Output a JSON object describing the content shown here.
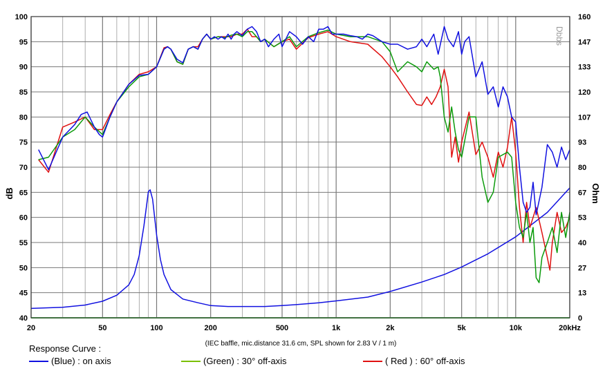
{
  "chart_data": {
    "type": "line",
    "xscale": "log",
    "xlim": [
      20,
      20000
    ],
    "ylim": [
      40,
      100
    ],
    "y2lim": [
      0,
      160
    ],
    "grid": true,
    "ylabel": "dB",
    "y2label": "Ohm",
    "watermark": "Dbbs",
    "note": "(IEC baffle, mic.distance 31.6 cm, SPL shown for 2.83 V / 1 m)",
    "x_ticks": [
      {
        "v": 20,
        "label": "20"
      },
      {
        "v": 50,
        "label": "50"
      },
      {
        "v": 100,
        "label": "100"
      },
      {
        "v": 200,
        "label": "200"
      },
      {
        "v": 500,
        "label": "500"
      },
      {
        "v": 1000,
        "label": "1k"
      },
      {
        "v": 2000,
        "label": "2k"
      },
      {
        "v": 5000,
        "label": "5k"
      },
      {
        "v": 10000,
        "label": "10k"
      },
      {
        "v": 20000,
        "label": "20kHz"
      }
    ],
    "y_ticks": [
      "40",
      "45",
      "50",
      "55",
      "60",
      "65",
      "70",
      "75",
      "80",
      "85",
      "90",
      "95",
      "100"
    ],
    "y2_ticks": [
      "0",
      "13",
      "27",
      "40",
      "53",
      "67",
      "80",
      "93",
      "107",
      "120",
      "133",
      "147",
      "160"
    ],
    "series": [
      {
        "name": "on axis",
        "color": "#1010e0",
        "x": [
          22,
          25,
          30,
          35,
          38,
          41,
          45,
          48,
          50,
          55,
          60,
          70,
          80,
          90,
          100,
          110,
          115,
          120,
          130,
          140,
          150,
          160,
          170,
          180,
          190,
          200,
          210,
          220,
          230,
          240,
          250,
          260,
          270,
          280,
          300,
          320,
          340,
          360,
          380,
          400,
          420,
          450,
          480,
          500,
          550,
          600,
          650,
          700,
          750,
          800,
          850,
          900,
          950,
          1000,
          1100,
          1200,
          1300,
          1400,
          1500,
          1600,
          1800,
          2000,
          2200,
          2500,
          2800,
          3000,
          3200,
          3500,
          3700,
          4000,
          4200,
          4500,
          4800,
          5000,
          5200,
          5500,
          6000,
          6500,
          7000,
          7500,
          8000,
          8500,
          9000,
          9500,
          10000,
          10500,
          11000,
          11500,
          12000,
          12500,
          13000,
          14000,
          15000,
          16000,
          17000,
          18000,
          19000,
          20000
        ],
        "y": [
          73.5,
          69.5,
          76,
          78.5,
          80.5,
          81,
          78,
          76.5,
          76,
          80,
          83,
          86.5,
          88.3,
          88.5,
          90,
          93.5,
          94,
          93.5,
          91.5,
          90.8,
          93.5,
          94,
          93.5,
          95.5,
          96.5,
          95.5,
          96,
          95.5,
          96,
          95.5,
          96.5,
          95.5,
          96.5,
          97,
          96.2,
          97.5,
          98,
          97,
          95,
          95.5,
          94,
          95.5,
          96.5,
          94,
          97,
          96,
          94.5,
          96,
          95,
          97.5,
          97.5,
          98,
          96.5,
          96.5,
          96.5,
          96.2,
          96,
          95.5,
          96.5,
          96.2,
          95,
          94.5,
          94.5,
          93.5,
          94,
          95.5,
          94,
          96.5,
          92.5,
          98,
          95.5,
          94,
          97,
          92.5,
          95,
          96,
          88,
          91,
          84.5,
          86,
          82,
          86,
          84,
          80,
          79,
          70,
          63,
          61,
          62,
          67,
          60.5,
          66,
          74.5,
          73,
          70,
          74,
          71.5,
          73.5
        ]
      },
      {
        "name": "30° off-axis",
        "color": "#0a9a0a",
        "x": [
          22,
          25,
          30,
          35,
          40,
          45,
          50,
          55,
          60,
          70,
          80,
          90,
          100,
          110,
          115,
          120,
          130,
          140,
          150,
          160,
          170,
          180,
          190,
          200,
          220,
          240,
          260,
          280,
          300,
          320,
          340,
          360,
          380,
          400,
          450,
          500,
          550,
          600,
          700,
          800,
          900,
          1000,
          1200,
          1500,
          1800,
          2000,
          2200,
          2500,
          2800,
          3000,
          3200,
          3500,
          3700,
          3800,
          4000,
          4200,
          4400,
          4600,
          4800,
          5000,
          5500,
          6000,
          6500,
          7000,
          7500,
          8000,
          9000,
          9500,
          10000,
          10500,
          11000,
          11500,
          12000,
          12500,
          13000,
          13500,
          14000,
          15000,
          16000,
          17000,
          18000,
          19000,
          20000
        ],
        "y": [
          71.5,
          72,
          76,
          77.5,
          80,
          78,
          76.5,
          80,
          83,
          86,
          88,
          88.5,
          90,
          93.5,
          94,
          93.5,
          91,
          90.5,
          93.5,
          94,
          93.5,
          95.5,
          96.5,
          95.5,
          96,
          95.8,
          96.3,
          96.5,
          96,
          97,
          97,
          96,
          95,
          95.5,
          94,
          95,
          96,
          94,
          96,
          96.8,
          97.3,
          96.5,
          96,
          96,
          95,
          93,
          89,
          91,
          90,
          89,
          91,
          89.5,
          90,
          88,
          80,
          77,
          82,
          77,
          73.5,
          72,
          80,
          80,
          68,
          63,
          65,
          72,
          73,
          72,
          63,
          58,
          56,
          61,
          55,
          58,
          48,
          47,
          52,
          55,
          58,
          53,
          61,
          56,
          61
        ]
      },
      {
        "name": "60° off-axis",
        "color": "#e01010",
        "x": [
          22,
          25,
          30,
          35,
          40,
          45,
          50,
          55,
          60,
          70,
          80,
          90,
          100,
          110,
          115,
          120,
          130,
          140,
          150,
          160,
          170,
          180,
          190,
          200,
          220,
          240,
          260,
          280,
          300,
          320,
          340,
          360,
          380,
          400,
          450,
          500,
          550,
          600,
          700,
          800,
          900,
          1000,
          1200,
          1500,
          1800,
          2000,
          2200,
          2500,
          2800,
          3000,
          3200,
          3400,
          3600,
          3800,
          4000,
          4200,
          4400,
          4600,
          4800,
          5000,
          5500,
          6000,
          6500,
          7000,
          7500,
          8000,
          8500,
          9000,
          9500,
          10000,
          10500,
          11000,
          11500,
          12000,
          12500,
          13000,
          14000,
          15000,
          15500,
          16000,
          17000,
          18000,
          19000,
          20000
        ],
        "y": [
          71.5,
          69,
          78,
          79,
          80,
          77.5,
          77.5,
          80.5,
          83,
          86.5,
          88.5,
          89,
          90,
          93.8,
          94,
          93.5,
          91,
          90.5,
          93.5,
          94,
          94,
          95.5,
          96.5,
          95.5,
          96,
          96,
          96,
          96.5,
          96.5,
          97.5,
          96,
          96,
          95,
          95.5,
          94,
          95,
          95.5,
          93.5,
          95.8,
          96.5,
          97,
          96,
          95,
          94.5,
          92,
          90,
          88,
          85,
          82.5,
          82.3,
          84,
          82.5,
          84,
          86,
          89.5,
          86,
          72,
          76,
          71,
          75,
          81,
          72.5,
          75,
          72,
          68,
          73,
          70,
          74,
          80,
          73,
          62,
          55,
          63,
          58,
          60,
          62,
          57,
          52,
          49.5,
          55,
          61,
          57,
          58,
          60
        ]
      }
    ],
    "impedance": {
      "name": "impedance",
      "color": "#1010e0",
      "x": [
        20,
        30,
        40,
        50,
        60,
        70,
        75,
        80,
        85,
        90,
        92,
        95,
        100,
        105,
        110,
        120,
        140,
        170,
        200,
        250,
        300,
        400,
        500,
        600,
        800,
        1000,
        1500,
        2000,
        3000,
        4000,
        5000,
        7000,
        10000,
        15000,
        20000
      ],
      "ohm": [
        5,
        5.6,
        6.8,
        8.8,
        12,
        17.5,
        23,
        33,
        49,
        67,
        68,
        63,
        44,
        31,
        23,
        15,
        10,
        8,
        6.5,
        6,
        6,
        6,
        6.5,
        7,
        8,
        9,
        11,
        14,
        19,
        23,
        27,
        34,
        43,
        56,
        69
      ]
    },
    "reference": {
      "color": "#55cc55",
      "db": 40
    }
  },
  "legend": {
    "title": "Response Curve :",
    "items": [
      {
        "label": "(Blue)  : on axis",
        "color": "#1010e0"
      },
      {
        "label": "(Green) : 30° off-axis",
        "color": "#0a9a0a"
      },
      {
        "label": "( Red )  : 60° off-axis",
        "color": "#e01010"
      }
    ]
  }
}
